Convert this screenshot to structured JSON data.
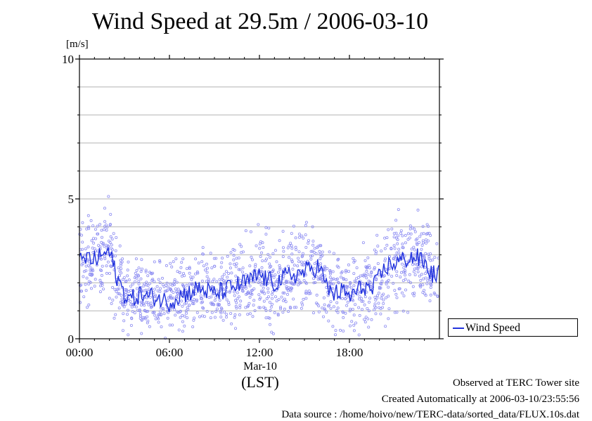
{
  "page": {
    "title": "Wind Speed at 29.5m / 2006-03-10"
  },
  "chart_data": {
    "type": "line",
    "title": "Wind Speed at 29.5m / 2006-03-10",
    "ylabel": "[m/s]",
    "xlabel_date": "Mar-10",
    "xlabel_unit": "(LST)",
    "ylim": [
      0,
      10
    ],
    "xlim": [
      0,
      24
    ],
    "yticks": [
      0,
      5,
      10
    ],
    "xticks": [
      {
        "value": 0,
        "label": "00:00"
      },
      {
        "value": 6,
        "label": "06:00"
      },
      {
        "value": 12,
        "label": "12:00"
      },
      {
        "value": 18,
        "label": "18:00"
      }
    ],
    "grid": true,
    "colors": {
      "line": "#2233dd",
      "points": "#8f8ff2"
    },
    "series": [
      {
        "name": "Wind Speed",
        "x": [
          0,
          0.5,
          1,
          1.5,
          2,
          2.5,
          3,
          3.5,
          4,
          4.5,
          5,
          5.5,
          6,
          6.5,
          7,
          7.5,
          8,
          8.5,
          9,
          9.5,
          10,
          10.5,
          11,
          11.5,
          12,
          12.5,
          13,
          13.5,
          14,
          14.5,
          15,
          15.5,
          16,
          16.5,
          17,
          17.5,
          18,
          18.5,
          19,
          19.5,
          20,
          20.5,
          21,
          21.5,
          22,
          22.5,
          23,
          23.5
        ],
        "y": [
          2.7,
          2.9,
          2.8,
          3.0,
          3.1,
          2.2,
          1.6,
          1.4,
          1.6,
          1.5,
          1.5,
          1.4,
          1.3,
          1.5,
          1.6,
          1.7,
          1.8,
          1.7,
          1.6,
          1.7,
          1.8,
          1.9,
          2.0,
          2.1,
          2.3,
          2.1,
          2.0,
          2.1,
          2.3,
          2.3,
          2.4,
          2.5,
          2.6,
          1.8,
          1.6,
          1.7,
          1.5,
          1.7,
          1.9,
          1.7,
          2.2,
          2.6,
          2.7,
          2.8,
          2.9,
          2.9,
          2.7,
          2.3
        ]
      }
    ],
    "legend": {
      "entry": "Wind Speed",
      "position": "bottom-right, outside plot"
    }
  },
  "footer": {
    "site": "Observed at TERC Tower site",
    "created": "Created Automatically at 2006-03-10/23:55:56",
    "source": "Data source : /home/hoivo/new/TERC-data/sorted_data/FLUX.10s.dat"
  }
}
